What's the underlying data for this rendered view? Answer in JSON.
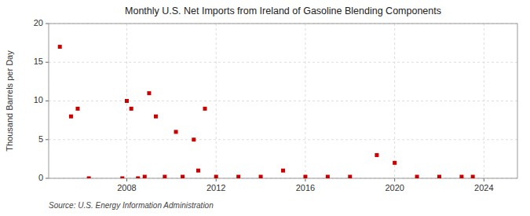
{
  "chart_data": {
    "type": "scatter",
    "title": "Monthly U.S. Net Imports from Ireland of Gasoline Blending Components",
    "ylabel": "Thousand Barrels per Day",
    "annotations": [
      "Source: U.S. Energy Information Administration"
    ],
    "color": "#cc0000",
    "marker": "square",
    "grid": true,
    "xlim": [
      2004.5,
      2025.5
    ],
    "xticks": [
      2008,
      2012,
      2016,
      2020,
      2024
    ],
    "ylim": [
      0,
      20
    ],
    "yticks": [
      0,
      5,
      10,
      15,
      20
    ],
    "x": [
      2005.0,
      2005.5,
      2005.8,
      2006.3,
      2007.8,
      2008.0,
      2008.2,
      2008.5,
      2008.8,
      2009.0,
      2009.3,
      2009.7,
      2010.2,
      2010.5,
      2011.0,
      2011.2,
      2011.5,
      2012.0,
      2013.0,
      2014.0,
      2015.0,
      2016.0,
      2017.0,
      2018.0,
      2019.2,
      2020.0,
      2021.0,
      2022.0,
      2023.0,
      2023.5
    ],
    "values": [
      17.0,
      8.0,
      9.0,
      0.0,
      0.0,
      10.0,
      9.0,
      0.0,
      0.2,
      11.0,
      8.0,
      0.2,
      6.0,
      0.2,
      5.0,
      1.0,
      9.0,
      0.2,
      0.2,
      0.2,
      1.0,
      0.2,
      0.2,
      0.2,
      3.0,
      2.0,
      0.2,
      0.2,
      0.2,
      0.2
    ]
  }
}
